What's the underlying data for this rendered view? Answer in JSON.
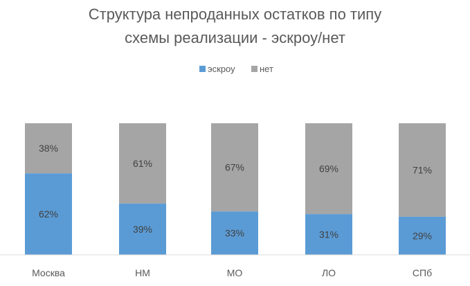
{
  "chart_data": {
    "type": "bar",
    "stacked": true,
    "percent": true,
    "title": [
      "Структура непроданных остатков по типу",
      "схемы реализации - эскроу/нет"
    ],
    "categories": [
      "Москва",
      "НМ",
      "МО",
      "ЛО",
      "СПб"
    ],
    "series": [
      {
        "name": "эскроу",
        "values": [
          62,
          39,
          33,
          31,
          29
        ],
        "labels": [
          "62%",
          "39%",
          "33%",
          "31%",
          "29%"
        ],
        "color": "#5B9BD5"
      },
      {
        "name": "нет",
        "values": [
          38,
          61,
          67,
          69,
          71
        ],
        "labels": [
          "38%",
          "61%",
          "67%",
          "69%",
          "71%"
        ],
        "color": "#A5A5A5"
      }
    ],
    "ylim": [
      0,
      100
    ],
    "grid": false,
    "legend_position": "top"
  }
}
